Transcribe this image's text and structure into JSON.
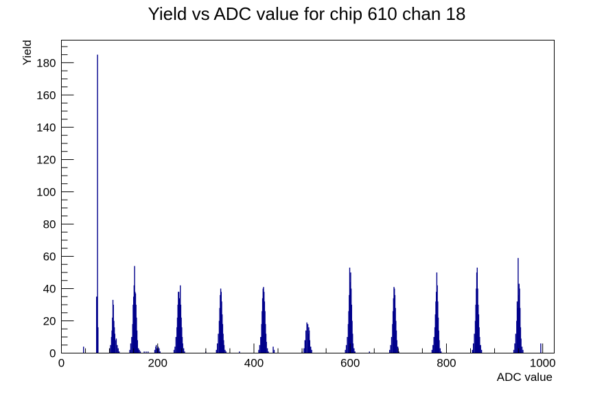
{
  "chart_data": {
    "type": "bar",
    "title": "Yield vs ADC value for chip 610 chan 18",
    "xlabel": "ADC value",
    "ylabel": "Yield",
    "xlim": [
      0,
      1024
    ],
    "ylim": [
      0,
      194
    ],
    "x_ticks": [
      0,
      200,
      400,
      600,
      800,
      1000
    ],
    "y_ticks": [
      0,
      20,
      40,
      60,
      80,
      100,
      120,
      140,
      160,
      180
    ],
    "grid": false,
    "color": "#00008b",
    "series": [
      {
        "bins": [
          {
            "x": 46,
            "y": 4
          },
          {
            "x": 73,
            "y": 35
          },
          {
            "x": 74,
            "y": 35
          },
          {
            "x": 75,
            "y": 185
          },
          {
            "x": 76,
            "y": 16
          },
          {
            "x": 100,
            "y": 3
          },
          {
            "x": 102,
            "y": 5
          },
          {
            "x": 104,
            "y": 10
          },
          {
            "x": 105,
            "y": 14
          },
          {
            "x": 106,
            "y": 22
          },
          {
            "x": 107,
            "y": 33
          },
          {
            "x": 108,
            "y": 30
          },
          {
            "x": 109,
            "y": 20
          },
          {
            "x": 110,
            "y": 16
          },
          {
            "x": 111,
            "y": 12
          },
          {
            "x": 112,
            "y": 8
          },
          {
            "x": 114,
            "y": 9
          },
          {
            "x": 116,
            "y": 5
          },
          {
            "x": 118,
            "y": 3
          },
          {
            "x": 120,
            "y": 1
          },
          {
            "x": 142,
            "y": 2
          },
          {
            "x": 144,
            "y": 6
          },
          {
            "x": 146,
            "y": 10
          },
          {
            "x": 148,
            "y": 18
          },
          {
            "x": 149,
            "y": 30
          },
          {
            "x": 150,
            "y": 35
          },
          {
            "x": 151,
            "y": 42
          },
          {
            "x": 152,
            "y": 54
          },
          {
            "x": 153,
            "y": 38
          },
          {
            "x": 154,
            "y": 37
          },
          {
            "x": 155,
            "y": 30
          },
          {
            "x": 156,
            "y": 22
          },
          {
            "x": 157,
            "y": 14
          },
          {
            "x": 158,
            "y": 8
          },
          {
            "x": 160,
            "y": 3
          },
          {
            "x": 162,
            "y": 2
          },
          {
            "x": 164,
            "y": 1
          },
          {
            "x": 172,
            "y": 1
          },
          {
            "x": 176,
            "y": 1
          },
          {
            "x": 180,
            "y": 1
          },
          {
            "x": 194,
            "y": 2
          },
          {
            "x": 196,
            "y": 4
          },
          {
            "x": 197,
            "y": 5
          },
          {
            "x": 199,
            "y": 3
          },
          {
            "x": 201,
            "y": 4
          },
          {
            "x": 203,
            "y": 3
          },
          {
            "x": 205,
            "y": 1
          },
          {
            "x": 234,
            "y": 2
          },
          {
            "x": 236,
            "y": 4
          },
          {
            "x": 238,
            "y": 10
          },
          {
            "x": 240,
            "y": 16
          },
          {
            "x": 241,
            "y": 22
          },
          {
            "x": 242,
            "y": 30
          },
          {
            "x": 243,
            "y": 38
          },
          {
            "x": 244,
            "y": 38
          },
          {
            "x": 245,
            "y": 34
          },
          {
            "x": 246,
            "y": 32
          },
          {
            "x": 247,
            "y": 42
          },
          {
            "x": 248,
            "y": 30
          },
          {
            "x": 249,
            "y": 22
          },
          {
            "x": 250,
            "y": 16
          },
          {
            "x": 251,
            "y": 10
          },
          {
            "x": 252,
            "y": 6
          },
          {
            "x": 254,
            "y": 3
          },
          {
            "x": 256,
            "y": 1
          },
          {
            "x": 300,
            "y": 1
          },
          {
            "x": 322,
            "y": 2
          },
          {
            "x": 324,
            "y": 6
          },
          {
            "x": 326,
            "y": 12
          },
          {
            "x": 328,
            "y": 20
          },
          {
            "x": 329,
            "y": 28
          },
          {
            "x": 330,
            "y": 36
          },
          {
            "x": 331,
            "y": 40
          },
          {
            "x": 332,
            "y": 38
          },
          {
            "x": 333,
            "y": 32
          },
          {
            "x": 334,
            "y": 24
          },
          {
            "x": 335,
            "y": 18
          },
          {
            "x": 336,
            "y": 12
          },
          {
            "x": 337,
            "y": 8
          },
          {
            "x": 338,
            "y": 5
          },
          {
            "x": 340,
            "y": 2
          },
          {
            "x": 342,
            "y": 1
          },
          {
            "x": 370,
            "y": 1
          },
          {
            "x": 410,
            "y": 2
          },
          {
            "x": 412,
            "y": 5
          },
          {
            "x": 414,
            "y": 10
          },
          {
            "x": 416,
            "y": 18
          },
          {
            "x": 417,
            "y": 26
          },
          {
            "x": 418,
            "y": 34
          },
          {
            "x": 419,
            "y": 40
          },
          {
            "x": 420,
            "y": 41
          },
          {
            "x": 421,
            "y": 38
          },
          {
            "x": 422,
            "y": 32
          },
          {
            "x": 423,
            "y": 26
          },
          {
            "x": 424,
            "y": 18
          },
          {
            "x": 425,
            "y": 12
          },
          {
            "x": 426,
            "y": 7
          },
          {
            "x": 428,
            "y": 3
          },
          {
            "x": 430,
            "y": 1
          },
          {
            "x": 440,
            "y": 4
          },
          {
            "x": 442,
            "y": 2
          },
          {
            "x": 500,
            "y": 1
          },
          {
            "x": 504,
            "y": 3
          },
          {
            "x": 506,
            "y": 8
          },
          {
            "x": 508,
            "y": 14
          },
          {
            "x": 510,
            "y": 19
          },
          {
            "x": 512,
            "y": 18
          },
          {
            "x": 513,
            "y": 12
          },
          {
            "x": 514,
            "y": 16
          },
          {
            "x": 515,
            "y": 14
          },
          {
            "x": 516,
            "y": 8
          },
          {
            "x": 518,
            "y": 4
          },
          {
            "x": 520,
            "y": 2
          },
          {
            "x": 590,
            "y": 2
          },
          {
            "x": 592,
            "y": 5
          },
          {
            "x": 594,
            "y": 10
          },
          {
            "x": 596,
            "y": 18
          },
          {
            "x": 597,
            "y": 26
          },
          {
            "x": 598,
            "y": 36
          },
          {
            "x": 599,
            "y": 53
          },
          {
            "x": 600,
            "y": 44
          },
          {
            "x": 601,
            "y": 50
          },
          {
            "x": 602,
            "y": 40
          },
          {
            "x": 603,
            "y": 30
          },
          {
            "x": 604,
            "y": 20
          },
          {
            "x": 605,
            "y": 12
          },
          {
            "x": 606,
            "y": 6
          },
          {
            "x": 608,
            "y": 3
          },
          {
            "x": 610,
            "y": 1
          },
          {
            "x": 640,
            "y": 1
          },
          {
            "x": 682,
            "y": 2
          },
          {
            "x": 684,
            "y": 5
          },
          {
            "x": 686,
            "y": 10
          },
          {
            "x": 688,
            "y": 18
          },
          {
            "x": 689,
            "y": 26
          },
          {
            "x": 690,
            "y": 34
          },
          {
            "x": 691,
            "y": 41
          },
          {
            "x": 692,
            "y": 40
          },
          {
            "x": 693,
            "y": 36
          },
          {
            "x": 694,
            "y": 28
          },
          {
            "x": 695,
            "y": 20
          },
          {
            "x": 696,
            "y": 14
          },
          {
            "x": 697,
            "y": 8
          },
          {
            "x": 699,
            "y": 4
          },
          {
            "x": 701,
            "y": 1
          },
          {
            "x": 770,
            "y": 2
          },
          {
            "x": 772,
            "y": 5
          },
          {
            "x": 774,
            "y": 10
          },
          {
            "x": 776,
            "y": 16
          },
          {
            "x": 777,
            "y": 24
          },
          {
            "x": 778,
            "y": 32
          },
          {
            "x": 779,
            "y": 38
          },
          {
            "x": 780,
            "y": 50
          },
          {
            "x": 781,
            "y": 42
          },
          {
            "x": 782,
            "y": 32
          },
          {
            "x": 783,
            "y": 22
          },
          {
            "x": 784,
            "y": 14
          },
          {
            "x": 785,
            "y": 8
          },
          {
            "x": 787,
            "y": 3
          },
          {
            "x": 789,
            "y": 1
          },
          {
            "x": 854,
            "y": 2
          },
          {
            "x": 856,
            "y": 6
          },
          {
            "x": 858,
            "y": 12
          },
          {
            "x": 860,
            "y": 20
          },
          {
            "x": 861,
            "y": 30
          },
          {
            "x": 862,
            "y": 40
          },
          {
            "x": 863,
            "y": 50
          },
          {
            "x": 864,
            "y": 53
          },
          {
            "x": 865,
            "y": 40
          },
          {
            "x": 866,
            "y": 30
          },
          {
            "x": 867,
            "y": 24
          },
          {
            "x": 868,
            "y": 16
          },
          {
            "x": 869,
            "y": 10
          },
          {
            "x": 871,
            "y": 5
          },
          {
            "x": 873,
            "y": 2
          },
          {
            "x": 940,
            "y": 2
          },
          {
            "x": 942,
            "y": 6
          },
          {
            "x": 944,
            "y": 12
          },
          {
            "x": 946,
            "y": 20
          },
          {
            "x": 947,
            "y": 32
          },
          {
            "x": 948,
            "y": 28
          },
          {
            "x": 949,
            "y": 59
          },
          {
            "x": 950,
            "y": 36
          },
          {
            "x": 951,
            "y": 43
          },
          {
            "x": 952,
            "y": 40
          },
          {
            "x": 953,
            "y": 28
          },
          {
            "x": 954,
            "y": 16
          },
          {
            "x": 955,
            "y": 9
          },
          {
            "x": 957,
            "y": 4
          },
          {
            "x": 959,
            "y": 2
          },
          {
            "x": 996,
            "y": 6
          }
        ]
      }
    ]
  }
}
